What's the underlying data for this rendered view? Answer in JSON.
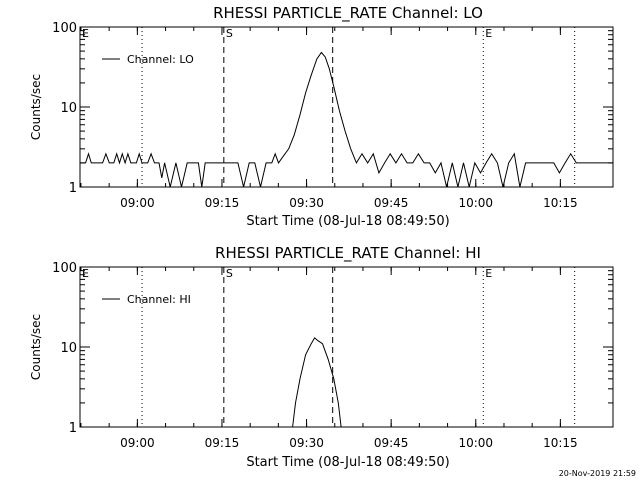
{
  "footer": {
    "timestamp": "20-Nov-2019 21:59"
  },
  "chart_data": [
    {
      "type": "line",
      "title": "RHESSI PARTICLE_RATE Channel: LO",
      "xlabel": "Start Time (08-Jul-18 08:49:50)",
      "ylabel": "Counts/sec",
      "yscale": "log",
      "ylim": [
        1,
        100
      ],
      "x_unit": "minutes after 08:49:50",
      "xlim": [
        0,
        94.5
      ],
      "x_ticks": [
        {
          "label": "09:00",
          "x": 10.17
        },
        {
          "label": "09:15",
          "x": 25.17
        },
        {
          "label": "09:30",
          "x": 40.17
        },
        {
          "label": "09:45",
          "x": 55.17
        },
        {
          "label": "10:00",
          "x": 70.17
        },
        {
          "label": "10:15",
          "x": 85.17
        }
      ],
      "y_ticks": [
        {
          "label": "1",
          "y": 1
        },
        {
          "label": "10",
          "y": 10
        },
        {
          "label": "100",
          "y": 100
        }
      ],
      "legend": {
        "position": "top-left",
        "label": "Channel: LO"
      },
      "markers": [
        {
          "label": "E",
          "x": 0,
          "style": "none"
        },
        {
          "label": "",
          "x": 11.0,
          "style": "dotted"
        },
        {
          "label": "S",
          "x": 25.5,
          "style": "dashed"
        },
        {
          "label": "",
          "x": 44.8,
          "style": "dashed"
        },
        {
          "label": "E",
          "x": 71.5,
          "style": "dotted"
        },
        {
          "label": "",
          "x": 87.7,
          "style": "dotted"
        }
      ],
      "series": [
        {
          "values": [
            [
              0,
              2
            ],
            [
              1,
              2
            ],
            [
              1.5,
              2.6
            ],
            [
              2,
              2
            ],
            [
              3,
              2
            ],
            [
              4,
              2
            ],
            [
              4.6,
              2.6
            ],
            [
              5.2,
              2
            ],
            [
              6,
              2
            ],
            [
              6.5,
              2.6
            ],
            [
              7,
              2
            ],
            [
              7.5,
              2.6
            ],
            [
              8,
              2
            ],
            [
              8.5,
              2.6
            ],
            [
              9,
              2
            ],
            [
              10,
              2
            ],
            [
              10.5,
              2.6
            ],
            [
              11,
              2
            ],
            [
              12,
              2
            ],
            [
              12.6,
              2.6
            ],
            [
              13.2,
              2
            ],
            [
              14,
              2
            ],
            [
              14.5,
              1.3
            ],
            [
              15,
              2
            ],
            [
              16,
              1
            ],
            [
              17,
              2
            ],
            [
              18,
              1
            ],
            [
              19,
              2
            ],
            [
              20,
              2
            ],
            [
              21,
              2
            ],
            [
              21.6,
              1
            ],
            [
              22.2,
              2
            ],
            [
              23,
              2
            ],
            [
              24,
              2
            ],
            [
              25,
              2
            ],
            [
              26,
              2
            ],
            [
              27,
              2
            ],
            [
              28,
              2
            ],
            [
              29,
              1
            ],
            [
              30,
              2
            ],
            [
              31,
              2
            ],
            [
              32,
              1
            ],
            [
              33,
              2
            ],
            [
              34,
              2
            ],
            [
              34.6,
              2.6
            ],
            [
              35.2,
              2
            ],
            [
              36,
              2.4
            ],
            [
              37,
              3
            ],
            [
              38,
              4.5
            ],
            [
              39,
              8
            ],
            [
              40,
              15
            ],
            [
              41,
              25
            ],
            [
              42,
              40
            ],
            [
              42.8,
              48
            ],
            [
              43.5,
              42
            ],
            [
              44.2,
              30
            ],
            [
              45,
              18
            ],
            [
              46,
              9
            ],
            [
              47,
              5
            ],
            [
              48,
              3
            ],
            [
              49,
              2
            ],
            [
              50,
              2.6
            ],
            [
              51,
              2
            ],
            [
              52,
              2.6
            ],
            [
              53,
              1.5
            ],
            [
              54,
              2
            ],
            [
              55,
              2.6
            ],
            [
              56,
              2
            ],
            [
              57,
              2.6
            ],
            [
              58,
              2
            ],
            [
              59,
              2
            ],
            [
              60,
              2.6
            ],
            [
              61,
              2
            ],
            [
              62,
              2
            ],
            [
              63,
              1.5
            ],
            [
              64,
              2
            ],
            [
              65,
              1
            ],
            [
              66,
              2
            ],
            [
              67,
              1
            ],
            [
              68,
              2
            ],
            [
              69,
              1
            ],
            [
              70,
              2
            ],
            [
              71,
              1.5
            ],
            [
              72,
              2
            ],
            [
              73,
              2.6
            ],
            [
              74,
              2
            ],
            [
              75,
              1
            ],
            [
              76,
              2
            ],
            [
              77,
              2.6
            ],
            [
              78,
              1
            ],
            [
              79,
              2
            ],
            [
              80,
              2
            ],
            [
              81,
              2
            ],
            [
              82,
              2
            ],
            [
              83,
              2
            ],
            [
              84,
              2
            ],
            [
              85,
              1.5
            ],
            [
              86,
              2
            ],
            [
              87,
              2.6
            ],
            [
              88,
              2
            ],
            [
              89,
              2
            ],
            [
              90,
              2
            ],
            [
              91,
              2
            ],
            [
              92,
              2
            ],
            [
              93,
              2
            ],
            [
              94.5,
              2
            ]
          ]
        }
      ]
    },
    {
      "type": "line",
      "title": "RHESSI PARTICLE_RATE Channel: HI",
      "xlabel": "Start Time (08-Jul-18 08:49:50)",
      "ylabel": "Counts/sec",
      "yscale": "log",
      "ylim": [
        1,
        100
      ],
      "x_unit": "minutes after 08:49:50",
      "xlim": [
        0,
        94.5
      ],
      "x_ticks": [
        {
          "label": "09:00",
          "x": 10.17
        },
        {
          "label": "09:15",
          "x": 25.17
        },
        {
          "label": "09:30",
          "x": 40.17
        },
        {
          "label": "09:45",
          "x": 55.17
        },
        {
          "label": "10:00",
          "x": 70.17
        },
        {
          "label": "10:15",
          "x": 85.17
        }
      ],
      "y_ticks": [
        {
          "label": "1",
          "y": 1
        },
        {
          "label": "10",
          "y": 10
        },
        {
          "label": "100",
          "y": 100
        }
      ],
      "legend": {
        "position": "top-left",
        "label": "Channel: HI"
      },
      "markers": [
        {
          "label": "E",
          "x": 0,
          "style": "none"
        },
        {
          "label": "",
          "x": 11.0,
          "style": "dotted"
        },
        {
          "label": "S",
          "x": 25.5,
          "style": "dashed"
        },
        {
          "label": "",
          "x": 44.8,
          "style": "dashed"
        },
        {
          "label": "E",
          "x": 71.5,
          "style": "dotted"
        },
        {
          "label": "",
          "x": 87.7,
          "style": "dotted"
        }
      ],
      "series": [
        {
          "values": [
            [
              37.7,
              1
            ],
            [
              38.2,
              2
            ],
            [
              39,
              4
            ],
            [
              40,
              8
            ],
            [
              41,
              11
            ],
            [
              41.6,
              13
            ],
            [
              42.2,
              12
            ],
            [
              43,
              11
            ],
            [
              44,
              7
            ],
            [
              45,
              4
            ],
            [
              45.8,
              2
            ],
            [
              46.3,
              1
            ]
          ]
        }
      ]
    }
  ]
}
